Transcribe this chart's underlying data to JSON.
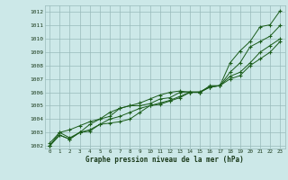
{
  "title": "Graphe pression niveau de la mer (hPa)",
  "background_color": "#cce8e8",
  "grid_color": "#99bbbb",
  "line_color": "#1a5c1a",
  "xlim": [
    -0.5,
    23.5
  ],
  "ylim": [
    1001.8,
    1012.5
  ],
  "yticks": [
    1002,
    1003,
    1004,
    1005,
    1006,
    1007,
    1008,
    1009,
    1010,
    1011,
    1012
  ],
  "xticks": [
    0,
    1,
    2,
    3,
    4,
    5,
    6,
    7,
    8,
    9,
    10,
    11,
    12,
    13,
    14,
    15,
    16,
    17,
    18,
    19,
    20,
    21,
    22,
    23
  ],
  "series": [
    [
      1002.0,
      1003.0,
      1002.6,
      1003.0,
      1003.1,
      1003.6,
      1003.7,
      1003.8,
      1004.0,
      1004.5,
      1005.0,
      1005.1,
      1005.35,
      1005.6,
      1006.0,
      1006.0,
      1006.5,
      1006.5,
      1008.2,
      1009.1,
      1009.8,
      1010.9,
      1011.05,
      1012.1
    ],
    [
      1002.0,
      1002.8,
      1002.5,
      1003.0,
      1003.2,
      1003.6,
      1004.0,
      1004.2,
      1004.5,
      1004.8,
      1005.0,
      1005.2,
      1005.4,
      1005.7,
      1006.0,
      1006.05,
      1006.4,
      1006.5,
      1007.5,
      1008.2,
      1009.4,
      1009.8,
      1010.2,
      1011.0
    ],
    [
      1002.0,
      1002.8,
      1002.5,
      1003.0,
      1003.6,
      1004.0,
      1004.2,
      1004.8,
      1005.0,
      1005.0,
      1005.15,
      1005.5,
      1005.6,
      1006.0,
      1006.05,
      1006.0,
      1006.4,
      1006.5,
      1007.2,
      1007.5,
      1008.2,
      1009.0,
      1009.5,
      1010.0
    ],
    [
      1002.2,
      1003.0,
      1003.2,
      1003.5,
      1003.8,
      1004.0,
      1004.5,
      1004.8,
      1005.0,
      1005.2,
      1005.5,
      1005.8,
      1006.0,
      1006.1,
      1006.0,
      1006.0,
      1006.4,
      1006.5,
      1007.0,
      1007.25,
      1008.0,
      1008.5,
      1009.0,
      1009.8
    ]
  ]
}
